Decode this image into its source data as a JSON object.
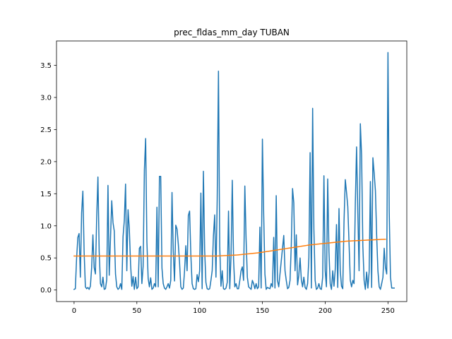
{
  "chart_data": {
    "type": "line",
    "title": "prec_fldas_mm_day TUBAN",
    "xlabel": "",
    "ylabel": "",
    "xlim": [
      -14,
      265
    ],
    "ylim": [
      -0.18,
      3.88
    ],
    "x_ticks": [
      0,
      50,
      100,
      150,
      200,
      250
    ],
    "x_tick_labels": [
      "0",
      "50",
      "100",
      "150",
      "200",
      "250"
    ],
    "y_ticks": [
      0.0,
      0.5,
      1.0,
      1.5,
      2.0,
      2.5,
      3.0,
      3.5
    ],
    "y_tick_labels": [
      "0.0",
      "0.5",
      "1.0",
      "1.5",
      "2.0",
      "2.5",
      "3.0",
      "3.5"
    ],
    "grid": false,
    "legend": "none",
    "series": [
      {
        "color": "#1f77b4",
        "values": [
          0.01,
          0.02,
          0.49,
          0.82,
          0.88,
          0.2,
          1.2,
          1.54,
          0.6,
          0.05,
          0.02,
          0.04,
          0.01,
          0.06,
          0.35,
          0.86,
          0.35,
          0.25,
          1.12,
          1.76,
          0.6,
          0.1,
          0.05,
          0.2,
          0.01,
          0.02,
          0.16,
          1.63,
          0.23,
          0.8,
          1.39,
          1.05,
          0.92,
          0.25,
          0.05,
          0.01,
          0.03,
          0.1,
          0.01,
          0.83,
          1.08,
          1.65,
          0.3,
          1.25,
          0.95,
          0.4,
          0.06,
          0.21,
          0.01,
          0.2,
          0.02,
          0.05,
          0.65,
          0.68,
          0.1,
          0.37,
          1.87,
          2.36,
          0.75,
          0.18,
          0.05,
          0.19,
          0.01,
          0.03,
          0.1,
          0.05,
          1.29,
          0.05,
          1.77,
          1.77,
          0.34,
          0.1,
          0.03,
          0.01,
          0.05,
          0.1,
          0.03,
          0.15,
          1.52,
          0.6,
          0.14,
          1.01,
          0.95,
          0.72,
          0.43,
          0.05,
          0.01,
          0.03,
          0.3,
          0.69,
          0.3,
          1.16,
          1.23,
          0.55,
          0.1,
          0.02,
          0.01,
          0.02,
          0.24,
          0.13,
          0.3,
          1.51,
          0.02,
          1.85,
          0.62,
          0.12,
          0.02,
          0.01,
          0.02,
          0.15,
          0.3,
          0.85,
          1.17,
          0.2,
          1.42,
          3.41,
          0.68,
          0.06,
          0.3,
          0.02,
          0.01,
          0.03,
          0.12,
          1.23,
          0.02,
          0.52,
          1.71,
          0.48,
          0.05,
          0.1,
          0.02,
          0.02,
          0.15,
          0.3,
          0.36,
          0.15,
          1.62,
          0.8,
          0.2,
          0.05,
          0.03,
          0.01,
          0.15,
          0.1,
          0.02,
          0.1,
          0.02,
          0.05,
          0.98,
          0.03,
          2.35,
          1.2,
          0.25,
          0.01,
          0.04,
          0.03,
          0.02,
          0.1,
          0.05,
          0.82,
          0.03,
          1.47,
          0.15,
          0.05,
          0.25,
          0.45,
          0.65,
          0.85,
          0.3,
          0.15,
          0.02,
          0.04,
          0.15,
          0.7,
          1.58,
          1.36,
          0.3,
          0.86,
          0.08,
          0.23,
          0.5,
          0.16,
          0.05,
          0.2,
          0.04,
          0.01,
          0.1,
          0.5,
          2.14,
          0.03,
          2.83,
          0.95,
          0.15,
          0.01,
          0.03,
          0.1,
          0.02,
          0.01,
          0.2,
          1.78,
          0.3,
          0.05,
          1.73,
          0.6,
          0.1,
          0.01,
          0.3,
          0.06,
          0.32,
          1.02,
          0.04,
          1.27,
          0.3,
          0.06,
          0.02,
          1.07,
          1.72,
          1.52,
          1.3,
          0.73,
          0.15,
          0.05,
          0.15,
          0.1,
          1.35,
          2.23,
          1.2,
          0.3,
          2.59,
          2.1,
          0.68,
          0.15,
          0.01,
          0.28,
          0.03,
          0.28,
          1.69,
          0.04,
          2.06,
          1.82,
          1.55,
          0.85,
          0.3,
          0.05,
          0.01,
          0.1,
          0.2,
          0.65,
          0.35,
          0.25,
          3.7,
          1.22,
          0.2,
          0.03,
          0.03,
          0.03
        ]
      },
      {
        "color": "#ff7f0e",
        "values": [
          0.53,
          0.53,
          0.53,
          0.53,
          0.53,
          0.53,
          0.53,
          0.53,
          0.53,
          0.53,
          0.53,
          0.53,
          0.53,
          0.53,
          0.53,
          0.53,
          0.53,
          0.53,
          0.53,
          0.53,
          0.53,
          0.53,
          0.53,
          0.53,
          0.53,
          0.53,
          0.53,
          0.53,
          0.53,
          0.53,
          0.53,
          0.53,
          0.53,
          0.53,
          0.53,
          0.53,
          0.53,
          0.53,
          0.53,
          0.53,
          0.53,
          0.53,
          0.53,
          0.53,
          0.53,
          0.53,
          0.53,
          0.53,
          0.53,
          0.53,
          0.53,
          0.53,
          0.53,
          0.53,
          0.53,
          0.53,
          0.53,
          0.53,
          0.53,
          0.53,
          0.53,
          0.53,
          0.53,
          0.53,
          0.53,
          0.53,
          0.53,
          0.53,
          0.53,
          0.53,
          0.53,
          0.53,
          0.53,
          0.53,
          0.53,
          0.53,
          0.53,
          0.53,
          0.53,
          0.53,
          0.53,
          0.53,
          0.53,
          0.53,
          0.53,
          0.53,
          0.53,
          0.53,
          0.53,
          0.53,
          0.53,
          0.53,
          0.53,
          0.53,
          0.53,
          0.53,
          0.53,
          0.53,
          0.53,
          0.53,
          0.53,
          0.53,
          0.53,
          0.53,
          0.53,
          0.53,
          0.53,
          0.53,
          0.53,
          0.53,
          0.53,
          0.53,
          0.53,
          0.53,
          0.53,
          0.531,
          0.532,
          0.533,
          0.534,
          0.535,
          0.536,
          0.537,
          0.538,
          0.539,
          0.54,
          0.541,
          0.542,
          0.543,
          0.544,
          0.545,
          0.546,
          0.548,
          0.55,
          0.552,
          0.554,
          0.556,
          0.558,
          0.56,
          0.562,
          0.564,
          0.566,
          0.568,
          0.57,
          0.572,
          0.574,
          0.576,
          0.578,
          0.58,
          0.583,
          0.586,
          0.589,
          0.592,
          0.595,
          0.598,
          0.601,
          0.604,
          0.607,
          0.61,
          0.613,
          0.616,
          0.619,
          0.622,
          0.625,
          0.628,
          0.631,
          0.634,
          0.637,
          0.64,
          0.643,
          0.646,
          0.649,
          0.652,
          0.655,
          0.658,
          0.661,
          0.664,
          0.667,
          0.67,
          0.673,
          0.676,
          0.679,
          0.682,
          0.685,
          0.688,
          0.691,
          0.694,
          0.697,
          0.7,
          0.703,
          0.705,
          0.707,
          0.709,
          0.711,
          0.713,
          0.715,
          0.717,
          0.719,
          0.721,
          0.723,
          0.725,
          0.727,
          0.729,
          0.731,
          0.733,
          0.735,
          0.737,
          0.739,
          0.741,
          0.743,
          0.745,
          0.747,
          0.749,
          0.751,
          0.753,
          0.755,
          0.757,
          0.759,
          0.761,
          0.762,
          0.763,
          0.764,
          0.765,
          0.766,
          0.767,
          0.768,
          0.769,
          0.77,
          0.771,
          0.772,
          0.773,
          0.774,
          0.775,
          0.776,
          0.777,
          0.778,
          0.779,
          0.78,
          0.781,
          0.782,
          0.783,
          0.784,
          0.785,
          0.786,
          0.787,
          0.788,
          0.789,
          0.79,
          0.791,
          0.791
        ]
      }
    ]
  }
}
